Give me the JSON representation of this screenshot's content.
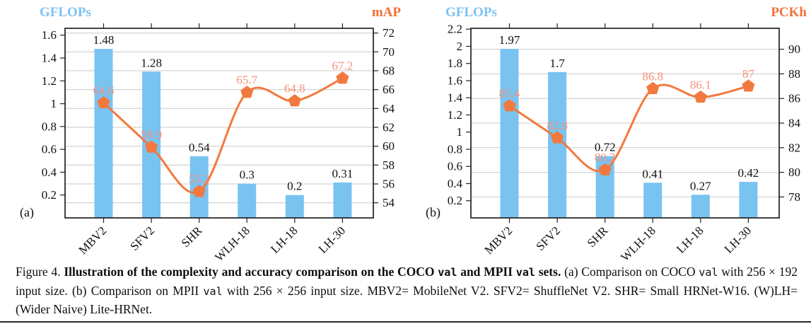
{
  "figure": {
    "caption_segments": [
      {
        "t": "Figure 4. ",
        "s": "r"
      },
      {
        "t": "Illustration of the complexity and accuracy comparison on the COCO ",
        "s": "b"
      },
      {
        "t": "val",
        "s": "bm"
      },
      {
        "t": " and MPII ",
        "s": "b"
      },
      {
        "t": "val",
        "s": "bm"
      },
      {
        "t": " sets.",
        "s": "b"
      },
      {
        "t": " (a) Comparison on COCO ",
        "s": "r"
      },
      {
        "t": "val",
        "s": "m"
      },
      {
        "t": " with 256 × 192 input size. (b) Comparison on MPII ",
        "s": "r"
      },
      {
        "t": "val",
        "s": "m"
      },
      {
        "t": " with 256 × 256 input size. MBV2= MobileNet V2. SFV2= ShuffleNet V2. SHR= Small HRNet-W16. (W)LH= (Wider Naive) Lite-HRNet.",
        "s": "r"
      }
    ]
  },
  "colors": {
    "bar": "#79C3F1",
    "line": "#F2793E",
    "line_value_label": "#F7907A",
    "bar_value_label": "#111111",
    "left_axis_title": "#7CC2F3",
    "right_axis_title": "#F2703A",
    "grid": "#C9C9C9",
    "frame": "#222222",
    "tick_text": "#111111"
  },
  "chart_data": [
    {
      "type": "bar",
      "panel_label": "(a)",
      "title": "",
      "xlabel": "",
      "left_axis_title": "GFLOPs",
      "right_axis_title": "mAP",
      "categories": [
        "MBV2",
        "SFV2",
        "SHR",
        "WLH-18",
        "LH-18",
        "LH-30"
      ],
      "series": [
        {
          "name": "GFLOPs",
          "plot": "bar",
          "axis": "left",
          "values": [
            1.48,
            1.28,
            0.54,
            0.3,
            0.2,
            0.31
          ],
          "labels": [
            "1.48",
            "1.28",
            "0.54",
            "0.3",
            "0.2",
            "0.31"
          ]
        },
        {
          "name": "mAP",
          "plot": "line",
          "axis": "right",
          "marker": "pentagon",
          "smooth": true,
          "values": [
            64.6,
            59.9,
            55.2,
            65.7,
            64.8,
            67.2
          ],
          "labels": [
            "64.6",
            "59.9",
            "55.2",
            "65.7",
            "64.8",
            "67.2"
          ]
        }
      ],
      "left_axis": {
        "min": 0,
        "max": 1.66,
        "tick_values": [
          0.2,
          0.4,
          0.6,
          0.8,
          1,
          1.2,
          1.4,
          1.6
        ],
        "tick_labels": [
          "0.2",
          "0.4",
          "0.6",
          "0.8",
          "1",
          "1.2",
          "1.4",
          "1.6"
        ]
      },
      "right_axis": {
        "min": 52.4,
        "max": 72.5,
        "tick_values": [
          54,
          56,
          58,
          60,
          62,
          64,
          66,
          68,
          70,
          72
        ],
        "tick_labels": [
          "54",
          "56",
          "58",
          "60",
          "62",
          "64",
          "66",
          "68",
          "70",
          "72"
        ]
      },
      "grid": "horizontal-on-right-axis-ticks",
      "legend": "none"
    },
    {
      "type": "bar",
      "panel_label": "(b)",
      "title": "",
      "xlabel": "",
      "left_axis_title": "GFLOPs",
      "right_axis_title": "PCKh",
      "categories": [
        "MBV2",
        "SFV2",
        "SHR",
        "WLH-18",
        "LH-18",
        "LH-30"
      ],
      "series": [
        {
          "name": "GFLOPs",
          "plot": "bar",
          "axis": "left",
          "values": [
            1.97,
            1.7,
            0.72,
            0.41,
            0.27,
            0.42
          ],
          "labels": [
            "1.97",
            "1.7",
            "0.72",
            "0.41",
            "0.27",
            "0.42"
          ]
        },
        {
          "name": "PCKh",
          "plot": "line",
          "axis": "right",
          "marker": "pentagon",
          "smooth": true,
          "values": [
            85.4,
            82.8,
            80.2,
            86.8,
            86.1,
            87
          ],
          "labels": [
            "85.4",
            "82.8",
            "80.2",
            "86.8",
            "86.1",
            "87"
          ]
        }
      ],
      "left_axis": {
        "min": 0,
        "max": 2.21,
        "tick_values": [
          0.2,
          0.4,
          0.6,
          0.8,
          1,
          1.2,
          1.4,
          1.6,
          1.8,
          2,
          2.2
        ],
        "tick_labels": [
          "0.2",
          "0.4",
          "0.6",
          "0.8",
          "1",
          "1.2",
          "1.4",
          "1.6",
          "1.8",
          "2",
          "2.2"
        ]
      },
      "right_axis": {
        "min": 76.3,
        "max": 91.7,
        "tick_values": [
          78,
          80,
          82,
          84,
          86,
          88,
          90
        ],
        "tick_labels": [
          "78",
          "80",
          "82",
          "84",
          "86",
          "88",
          "90"
        ]
      },
      "grid": "horizontal-on-right-axis-ticks",
      "legend": "none"
    }
  ]
}
